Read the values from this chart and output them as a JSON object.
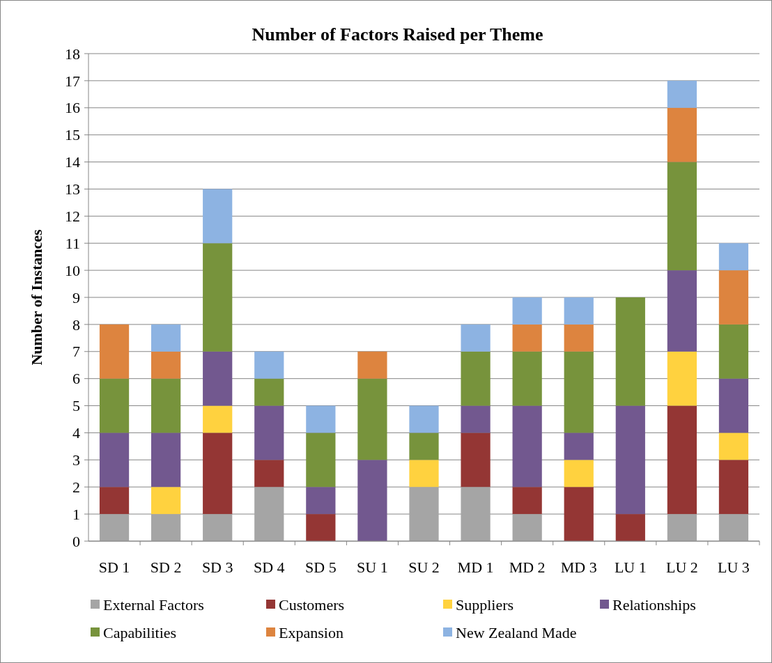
{
  "chart_data": {
    "type": "bar",
    "title": "Number of Factors Raised per Theme",
    "ylabel": "Number of Instances",
    "stacked": true,
    "categories": [
      "SD 1",
      "SD 2",
      "SD 3",
      "SD 4",
      "SD 5",
      "SU 1",
      "SU 2",
      "MD 1",
      "MD 2",
      "MD 3",
      "LU 1",
      "LU 2",
      "LU 3"
    ],
    "series": [
      {
        "name": "External Factors",
        "color": "#a5a5a5",
        "values": [
          1,
          1,
          1,
          2,
          0,
          0,
          2,
          2,
          1,
          0,
          0,
          1,
          1
        ]
      },
      {
        "name": "Customers",
        "color": "#943634",
        "values": [
          1,
          0,
          3,
          1,
          1,
          0,
          0,
          2,
          1,
          2,
          1,
          4,
          2
        ]
      },
      {
        "name": "Suppliers",
        "color": "#ffd23f",
        "values": [
          0,
          1,
          1,
          0,
          0,
          0,
          1,
          0,
          0,
          1,
          0,
          2,
          1
        ]
      },
      {
        "name": "Relationships",
        "color": "#72588f",
        "values": [
          2,
          2,
          2,
          2,
          1,
          3,
          0,
          1,
          3,
          1,
          4,
          3,
          2
        ]
      },
      {
        "name": "Capabilities",
        "color": "#77933c",
        "values": [
          2,
          2,
          4,
          1,
          2,
          3,
          1,
          2,
          2,
          3,
          4,
          4,
          2
        ]
      },
      {
        "name": "Expansion",
        "color": "#dd843f",
        "values": [
          2,
          1,
          0,
          0,
          0,
          1,
          0,
          0,
          1,
          1,
          0,
          2,
          2
        ]
      },
      {
        "name": "New Zealand Made",
        "color": "#8db3e2",
        "values": [
          0,
          1,
          2,
          1,
          1,
          0,
          1,
          1,
          1,
          1,
          0,
          1,
          1
        ]
      }
    ],
    "ylim": [
      0,
      18
    ],
    "yticks": [
      0,
      1,
      2,
      3,
      4,
      5,
      6,
      7,
      8,
      9,
      10,
      11,
      12,
      13,
      14,
      15,
      16,
      17,
      18
    ],
    "grid": "y",
    "legend": "bottom"
  }
}
